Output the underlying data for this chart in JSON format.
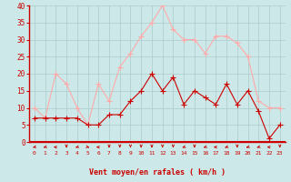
{
  "hours": [
    0,
    1,
    2,
    3,
    4,
    5,
    6,
    7,
    8,
    9,
    10,
    11,
    12,
    13,
    14,
    15,
    16,
    17,
    18,
    19,
    20,
    21,
    22,
    23
  ],
  "wind_avg": [
    7,
    7,
    7,
    7,
    7,
    5,
    5,
    8,
    8,
    12,
    15,
    20,
    15,
    19,
    11,
    15,
    13,
    11,
    17,
    11,
    15,
    9,
    1,
    5
  ],
  "wind_gust": [
    10,
    7,
    20,
    17,
    10,
    5,
    17,
    12,
    22,
    26,
    31,
    35,
    40,
    33,
    30,
    30,
    26,
    31,
    31,
    29,
    25,
    12,
    10,
    10
  ],
  "wind_avg_color": "#cc0000",
  "wind_gust_color": "#ffaaaa",
  "bg_color": "#cce8e8",
  "grid_color": "#aacccc",
  "spine_color": "#cc0000",
  "xlabel": "Vent moyen/en rafales ( km/h )",
  "xlabel_color": "#cc0000",
  "tick_color": "#cc0000",
  "arrow_color": "#cc0000",
  "ylim": [
    0,
    40
  ],
  "yticks": [
    0,
    5,
    10,
    15,
    20,
    25,
    30,
    35,
    40
  ],
  "marker": "P",
  "marker_size": 2.5,
  "line_width": 0.8
}
